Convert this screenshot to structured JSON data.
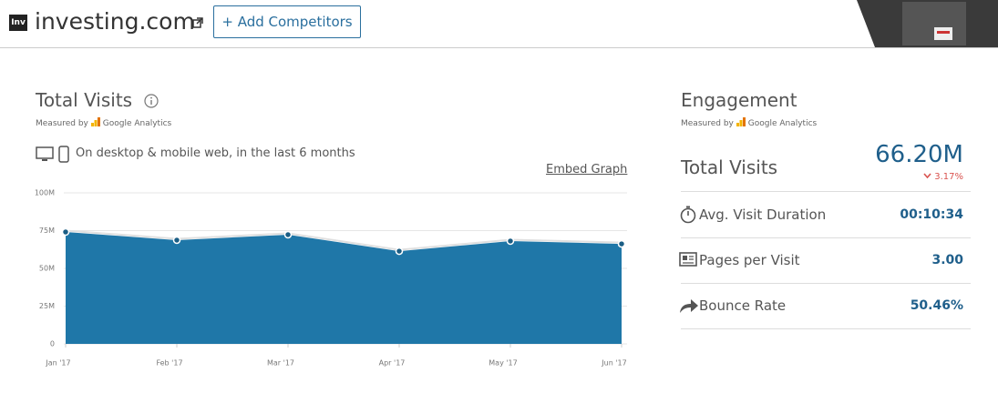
{
  "header": {
    "logo": "Inv",
    "site": "investing.com",
    "button": "+ Add Competitors"
  },
  "total_visits": {
    "measured_by": "Measured by",
    "provider": "Google Analytics",
    "device_note": "On desktop & mobile web, in the last 6 months",
    "embed": "Embed Graph"
  },
  "chart_data": {
    "type": "area",
    "title": "Total Visits",
    "categories": [
      "Jan '17",
      "Feb '17",
      "Mar '17",
      "Apr '17",
      "May '17",
      "Jun '17"
    ],
    "values": [
      74100000,
      68700000,
      72300000,
      61400000,
      68100000,
      66200000
    ],
    "color": "#1f77a8",
    "ylim": [
      0,
      100000000
    ],
    "yticks": [
      0,
      {
        "value": 25000000,
        "label": "25M"
      },
      {
        "value": 50000000,
        "label": "50M"
      },
      {
        "value": 75000000,
        "label": "75M"
      },
      {
        "value": 100000000,
        "label": "100M"
      }
    ],
    "grid": true
  },
  "engagement": {
    "title": "Engagement",
    "measured_by": "Measured by",
    "provider": "Google Analytics",
    "total_label": "Total Visits",
    "total_value": "66.20M",
    "change": "3.17%",
    "metrics": [
      {
        "label": "Avg. Visit Duration",
        "value": "00:10:34"
      },
      {
        "label": "Pages per Visit",
        "value": "3.00"
      },
      {
        "label": "Bounce Rate",
        "value": "50.46%"
      }
    ]
  }
}
